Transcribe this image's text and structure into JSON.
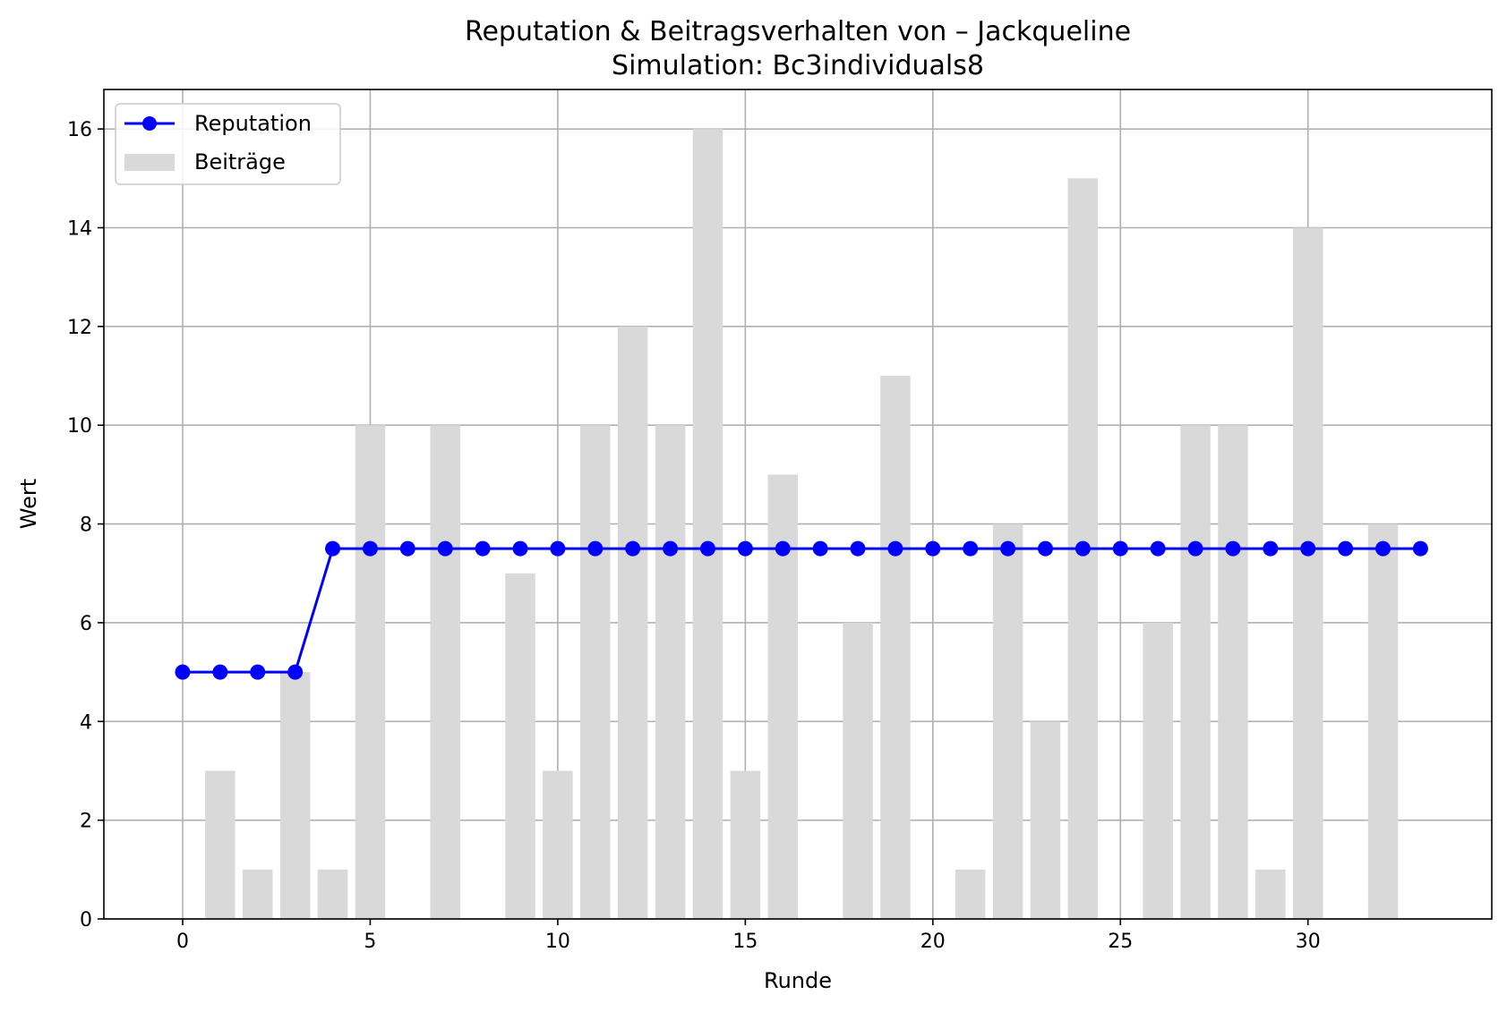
{
  "chart_data": {
    "type": "bar+line",
    "title": "Reputation & Beitragsverhalten von – Jackqueline",
    "subtitle": "Simulation: Bc3individuals8",
    "xlabel": "Runde",
    "ylabel": "Wert",
    "xlim": [
      -2.1,
      34.9
    ],
    "ylim": [
      0,
      16.8
    ],
    "xticks": [
      0,
      5,
      10,
      15,
      20,
      25,
      30
    ],
    "yticks": [
      0,
      2,
      4,
      6,
      8,
      10,
      12,
      14,
      16
    ],
    "grid": true,
    "legend_position": "top-left",
    "x": [
      0,
      1,
      2,
      3,
      4,
      5,
      6,
      7,
      8,
      9,
      10,
      11,
      12,
      13,
      14,
      15,
      16,
      17,
      18,
      19,
      20,
      21,
      22,
      23,
      24,
      25,
      26,
      27,
      28,
      29,
      30,
      31,
      32,
      33
    ],
    "series": [
      {
        "name": "Reputation",
        "kind": "line",
        "color": "#0000ff",
        "values": [
          5,
          5,
          5,
          5,
          7.5,
          7.5,
          7.5,
          7.5,
          7.5,
          7.5,
          7.5,
          7.5,
          7.5,
          7.5,
          7.5,
          7.5,
          7.5,
          7.5,
          7.5,
          7.5,
          7.5,
          7.5,
          7.5,
          7.5,
          7.5,
          7.5,
          7.5,
          7.5,
          7.5,
          7.5,
          7.5,
          7.5,
          7.5,
          7.5
        ]
      },
      {
        "name": "Beiträge",
        "kind": "bar",
        "color": "#d9d9d9",
        "values": [
          0,
          3,
          1,
          5,
          1,
          10,
          0,
          10,
          0,
          7,
          3,
          10,
          12,
          10,
          16,
          3,
          9,
          0,
          6,
          11,
          0,
          1,
          8,
          4,
          15,
          0,
          6,
          10,
          10,
          1,
          14,
          0,
          8,
          0
        ]
      }
    ]
  }
}
